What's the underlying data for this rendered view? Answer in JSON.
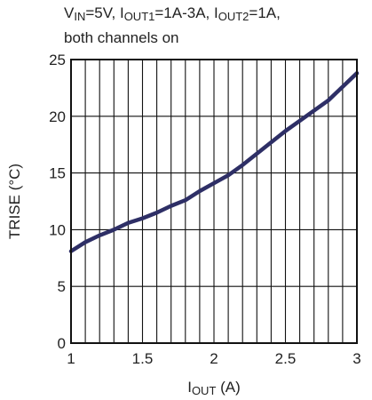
{
  "chart_data": {
    "type": "line",
    "title_lines": [
      {
        "parts": [
          {
            "t": "V"
          },
          {
            "t": "IN",
            "sub": true
          },
          {
            "t": "=5V, I"
          },
          {
            "t": "OUT1",
            "sub": true
          },
          {
            "t": "=1A-3A, I"
          },
          {
            "t": "OUT2",
            "sub": true
          },
          {
            "t": "=1A,"
          }
        ]
      },
      {
        "parts": [
          {
            "t": "both channels on"
          }
        ]
      }
    ],
    "xlabel": {
      "parts": [
        {
          "t": "I"
        },
        {
          "t": "OUT",
          "sub": true
        },
        {
          "t": " (A)"
        }
      ]
    },
    "ylabel": "TRISE (°C)",
    "xlim": [
      1,
      3
    ],
    "ylim": [
      0,
      25
    ],
    "xticks": [
      1,
      1.5,
      2,
      2.5,
      3
    ],
    "xtick_labels": [
      "1",
      "1.5",
      "2",
      "2.5",
      "3"
    ],
    "yticks": [
      0,
      5,
      10,
      15,
      20,
      25
    ],
    "ytick_labels": [
      "0",
      "5",
      "10",
      "15",
      "20",
      "25"
    ],
    "grid": true,
    "x_grid_step": 0.1,
    "y_grid_step": 5,
    "line_color": "#2e2f66",
    "series": [
      {
        "x": [
          1.0,
          1.1,
          1.2,
          1.3,
          1.4,
          1.5,
          1.6,
          1.7,
          1.8,
          1.9,
          2.0,
          2.1,
          2.2,
          2.3,
          2.4,
          2.5,
          2.6,
          2.7,
          2.8,
          2.9,
          3.0
        ],
        "y": [
          8.1,
          8.9,
          9.5,
          10.0,
          10.6,
          11.0,
          11.5,
          12.1,
          12.6,
          13.4,
          14.1,
          14.8,
          15.7,
          16.7,
          17.7,
          18.7,
          19.6,
          20.5,
          21.4,
          22.6,
          23.8
        ]
      }
    ]
  }
}
